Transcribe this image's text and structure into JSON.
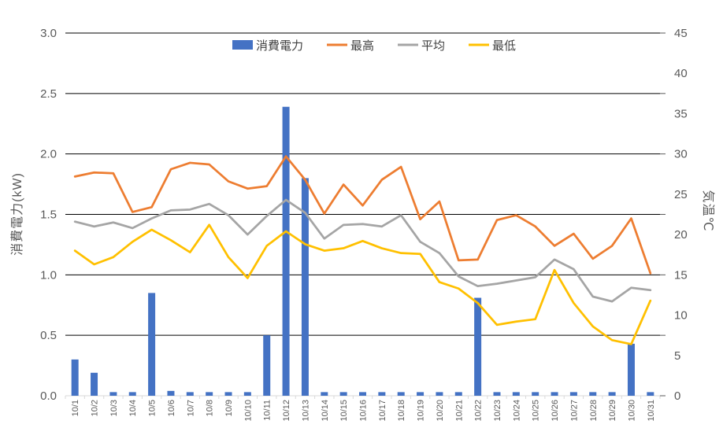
{
  "chart_data": {
    "type": "combo-bar-line",
    "title": "",
    "categories": [
      "10/1",
      "10/2",
      "10/3",
      "10/4",
      "10/5",
      "10/6",
      "10/7",
      "10/8",
      "10/9",
      "10/10",
      "10/11",
      "10/12",
      "10/13",
      "10/14",
      "10/15",
      "10/16",
      "10/17",
      "10/18",
      "10/19",
      "10/20",
      "10/21",
      "10/22",
      "10/23",
      "10/24",
      "10/25",
      "10/26",
      "10/27",
      "10/28",
      "10/29",
      "10/30",
      "10/31"
    ],
    "bar_series": {
      "name": "消費電力",
      "unit": "kW",
      "axis": "left",
      "color": "#4472C4",
      "values": [
        0.3,
        0.19,
        0.03,
        0.03,
        0.85,
        0.04,
        0.03,
        0.03,
        0.03,
        0.03,
        0.5,
        2.39,
        1.8,
        0.03,
        0.03,
        0.03,
        0.03,
        0.03,
        0.03,
        0.03,
        0.03,
        0.81,
        0.03,
        0.03,
        0.03,
        0.03,
        0.03,
        0.03,
        0.03,
        0.43,
        0.03
      ]
    },
    "line_series": [
      {
        "name": "最高",
        "unit": "°C",
        "axis": "right",
        "color": "#ED7D31",
        "values": [
          27.2,
          27.7,
          27.6,
          22.8,
          23.4,
          28.1,
          28.9,
          28.7,
          26.6,
          25.7,
          26.0,
          29.7,
          26.8,
          22.6,
          26.2,
          23.6,
          26.8,
          28.4,
          21.9,
          24.1,
          16.8,
          16.9,
          21.8,
          22.4,
          21.0,
          18.6,
          20.1,
          17.0,
          18.6,
          22.0,
          15.2
        ]
      },
      {
        "name": "平均",
        "unit": "°C",
        "axis": "right",
        "color": "#A5A5A5",
        "values": [
          21.6,
          21.0,
          21.5,
          20.8,
          22.0,
          23.0,
          23.1,
          23.8,
          22.4,
          20.0,
          22.3,
          24.3,
          22.7,
          19.5,
          21.2,
          21.3,
          21.0,
          22.4,
          19.1,
          17.7,
          14.8,
          13.6,
          13.9,
          14.3,
          14.7,
          16.9,
          15.7,
          12.3,
          11.7,
          13.4,
          13.1
        ]
      },
      {
        "name": "最低",
        "unit": "°C",
        "axis": "right",
        "color": "#FFC000",
        "values": [
          18.0,
          16.3,
          17.2,
          19.1,
          20.6,
          19.3,
          17.8,
          21.2,
          17.2,
          14.6,
          18.6,
          20.4,
          18.8,
          18.0,
          18.3,
          19.2,
          18.3,
          17.7,
          17.6,
          14.1,
          13.3,
          11.5,
          8.8,
          9.2,
          9.5,
          15.6,
          11.5,
          8.6,
          6.9,
          6.4,
          11.8
        ]
      }
    ],
    "left_axis": {
      "title": "消費電力(kW)",
      "min": 0,
      "max": 3,
      "tick_labels": [
        "0.0",
        "0.5",
        "1.0",
        "1.5",
        "2.0",
        "2.5",
        "3.0"
      ]
    },
    "right_axis": {
      "title": "気温℃",
      "min": 0,
      "max": 45,
      "tick_labels": [
        "0",
        "5",
        "10",
        "15",
        "20",
        "25",
        "30",
        "35",
        "40",
        "45"
      ]
    },
    "legend": {
      "position": "top-center",
      "items": [
        {
          "label": "消費電力",
          "marker": "bar",
          "color": "#4472C4"
        },
        {
          "label": "最高",
          "marker": "line",
          "color": "#ED7D31"
        },
        {
          "label": "平均",
          "marker": "line",
          "color": "#A5A5A5"
        },
        {
          "label": "最低",
          "marker": "line",
          "color": "#FFC000"
        }
      ]
    },
    "grid": true,
    "style": {
      "grid_color": "#000000",
      "baseline_color": "#D9D9D9",
      "tick_mark_color": "#595959",
      "label_color": "#595959",
      "background": "#FFFFFF"
    }
  }
}
